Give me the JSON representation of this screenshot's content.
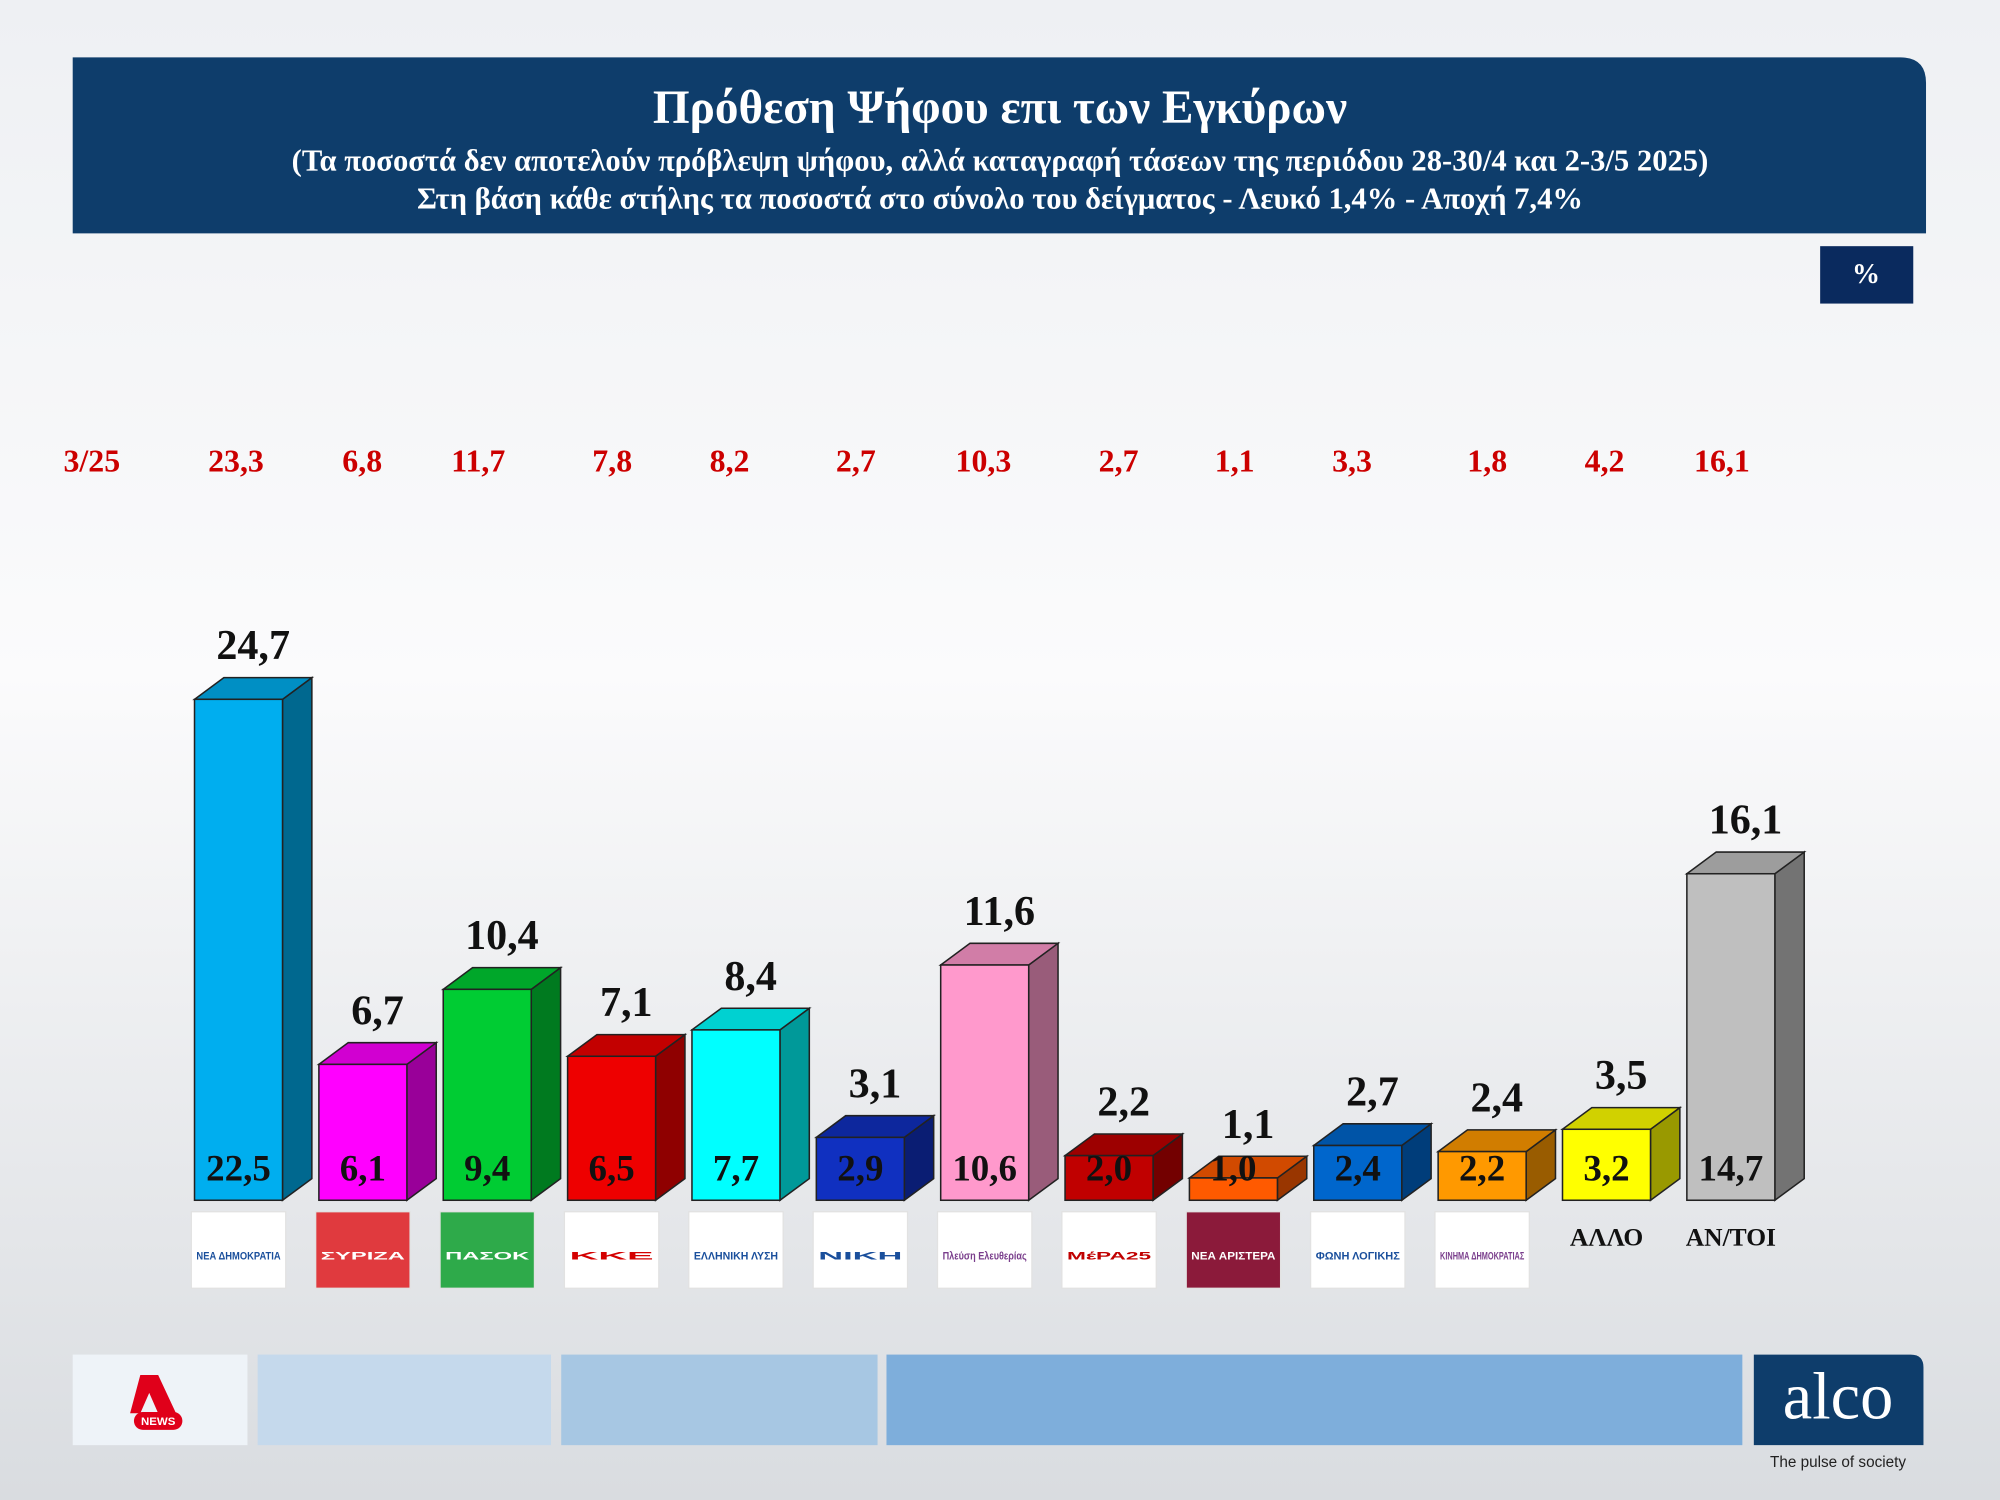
{
  "chart_data": {
    "type": "bar",
    "title": "Πρόθεση Ψήφου επι των Εγκύρων",
    "subtitle": [
      "(Τα ποσοστά δεν αποτελούν πρόβλεψη ψήφου, αλλά καταγραφή τάσεων της περιόδου  28-30/4 και 2-3/5 2025)",
      "Στη βάση κάθε στήλης τα ποσοστά στο σύνολο του δείγματος - Λευκό 1,4% - Αποχή 7,4%"
    ],
    "unit": "%",
    "categories": [
      "ΝΕΑ ΔΗΜΟΚΡΑΤΙΑ",
      "ΣΥΡΙΖΑ",
      "ΠΑΣΟΚ",
      "ΚΚΕ",
      "ΕΛΛΗΝΙΚΗ ΛΥΣΗ",
      "ΝΙΚΗ",
      "Πλεύση Ελευθερίας",
      "ΜέΡΑ25",
      "ΝΕΑ ΑΡΙΣΤΕΡΑ",
      "ΦΩΝΗ ΛΟΓΙΚΗΣ",
      "ΚΙΝΗΜΑ ΔΗΜΟΚΡΑΤΙΑΣ",
      "ΑΛΛΟ",
      "ΑΝ/ΤΟΙ"
    ],
    "colors": [
      "#00aeef",
      "#ff00ff",
      "#00cc33",
      "#ee0000",
      "#00ffff",
      "#1030c0",
      "#ff99cc",
      "#c00000",
      "#ff5a00",
      "#0066cc",
      "#ff9900",
      "#ffff00",
      "#bfbfbf"
    ],
    "values": [
      24.7,
      6.7,
      10.4,
      7.1,
      8.4,
      3.1,
      11.6,
      2.2,
      1.1,
      2.7,
      2.4,
      3.5,
      16.1
    ],
    "value_labels": [
      "24,7",
      "6,7",
      "10,4",
      "7,1",
      "8,4",
      "3,1",
      "11,6",
      "2,2",
      "1,1",
      "2,7",
      "2,4",
      "3,5",
      "16,1"
    ],
    "sample_value_labels": [
      "22,5",
      "6,1",
      "9,4",
      "6,5",
      "7,7",
      "2,9",
      "10,6",
      "2,0",
      "1,0",
      "2,4",
      "2,2",
      "3,2",
      "14,7"
    ],
    "previous_label": "3/25",
    "previous_value_labels": [
      "23,3",
      "6,8",
      "11,7",
      "7,8",
      "8,2",
      "2,7",
      "10,3",
      "2,7",
      "1,1",
      "3,3",
      "1,8",
      "4,2",
      "16,1"
    ]
  },
  "footer": {
    "channel": "NEWS",
    "brand": "alco",
    "tagline": "The pulse of society"
  }
}
